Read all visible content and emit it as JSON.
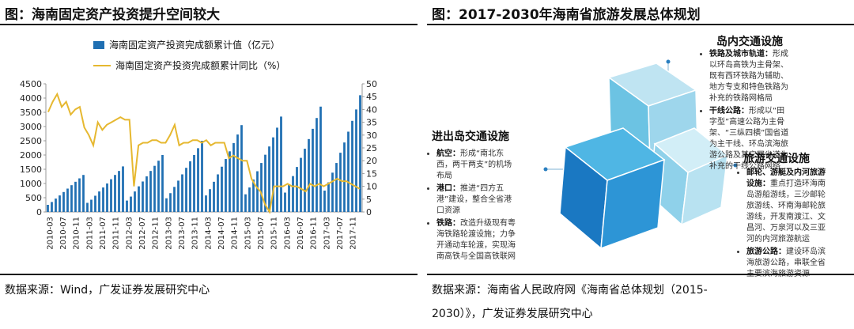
{
  "left": {
    "title": "图：海南固定资产投资提升空间较大",
    "source": "数据来源：Wind，广发证券发展研究中心"
  },
  "right": {
    "title": "图：2017-2030年海南省旅游发展总体规划",
    "source_line1": "数据来源：海南省人民政府网《海南省总体规划（2015-",
    "source_line2": "2030）》，广发证券发展研究中心",
    "groups": [
      {
        "heading": "岛内交通设施",
        "items": [
          {
            "bold": "铁路及城市轨道：",
            "text": "形成以环岛高铁为主骨架、既有西环铁路为辅助、地方专支和特色铁路为补充的铁路网格局"
          },
          {
            "bold": "干线公路：",
            "text": "形成以“田字型”高速公路为主骨架、“三纵四横”国省道为主干线、环岛滨海旅游公路及其它国省道为补充的干线公路网络"
          }
        ]
      },
      {
        "heading": "进出岛交通设施",
        "items": [
          {
            "bold": "航空：",
            "text": "形成“南北东西，两干两支”的机场布局"
          },
          {
            "bold": "港口：",
            "text": "推进“四方五港”建设，整合全省港口资源"
          },
          {
            "bold": "铁路：",
            "text": "改造升级现有粤海铁路轮渡设施；力争开通动车轮渡，实现海南高铁与全国高铁联网"
          }
        ]
      },
      {
        "heading": "旅游交通设施",
        "items": [
          {
            "bold": "邮轮、游艇及内河旅游设施：",
            "text": "重点打造环海南岛游船游线，三沙邮轮旅游线、环南海邮轮旅游线，开发南渡江、文昌河、万泉河以及三亚河的内河旅游航运"
          },
          {
            "bold": "旅游公路：",
            "text": "建设环岛滨海旅游公路，串联全省主要滨海旅游资源"
          }
        ]
      }
    ]
  },
  "chart_data": {
    "type": "bar",
    "legend": [
      "海南固定资产投资完成额累计值（亿元）",
      "海南固定资产投资完成额累计同比（%）"
    ],
    "colors": {
      "bar": "#1f6fb2",
      "line": "#e6b830"
    },
    "x_labels": [
      "2010-03",
      "2010-07",
      "2010-11",
      "2011-03",
      "2011-07",
      "2011-11",
      "2012-03",
      "2012-07",
      "2012-11",
      "2013-03",
      "2013-07",
      "2013-11",
      "2014-03",
      "2014-07",
      "2014-11",
      "2015-03",
      "2015-07",
      "2015-11",
      "2016-03",
      "2016-07",
      "2016-11",
      "2017-03",
      "2017-07",
      "2017-11"
    ],
    "y_left": {
      "min": 0,
      "max": 4500,
      "ticks": [
        0,
        500,
        1000,
        1500,
        2000,
        2500,
        3000,
        3500,
        4000,
        4500
      ]
    },
    "y_right": {
      "min": 0,
      "max": 50,
      "ticks": [
        0,
        5,
        10,
        15,
        20,
        25,
        30,
        35,
        40,
        45,
        50
      ]
    },
    "years": [
      {
        "year": "2010",
        "values": [
          250,
          350,
          470,
          580,
          700,
          820,
          940,
          1060,
          1180,
          1300
        ]
      },
      {
        "year": "2011",
        "values": [
          320,
          430,
          570,
          720,
          860,
          1000,
          1150,
          1300,
          1440,
          1600
        ]
      },
      {
        "year": "2012",
        "values": [
          400,
          540,
          720,
          900,
          1070,
          1250,
          1440,
          1620,
          1800,
          2000
        ]
      },
      {
        "year": "2013",
        "values": [
          480,
          660,
          880,
          1100,
          1320,
          1550,
          1780,
          2000,
          2240,
          2500
        ]
      },
      {
        "year": "2014",
        "values": [
          580,
          800,
          1060,
          1320,
          1590,
          1860,
          2130,
          2420,
          2720,
          3050
        ]
      },
      {
        "year": "2015",
        "values": [
          620,
          860,
          1140,
          1430,
          1720,
          2010,
          2300,
          2620,
          2960,
          3350
        ]
      },
      {
        "year": "2016",
        "values": [
          680,
          950,
          1260,
          1580,
          1900,
          2220,
          2560,
          2920,
          3300,
          3700
        ]
      },
      {
        "year": "2017",
        "values": [
          750,
          1040,
          1380,
          1720,
          2080,
          2440,
          2820,
          3200,
          3600,
          4100
        ]
      }
    ],
    "growth": [
      39,
      43,
      46,
      41,
      43,
      38,
      40,
      41,
      33,
      30,
      26,
      35,
      32,
      34,
      35,
      36,
      37,
      36,
      36,
      10,
      26,
      27,
      27,
      28,
      28,
      27,
      27,
      30,
      34,
      26,
      27,
      27,
      28,
      28,
      27,
      28,
      26,
      27,
      27,
      27,
      21,
      22,
      21,
      20,
      20,
      13,
      10,
      8,
      3,
      0,
      10,
      10,
      10,
      11,
      10,
      10,
      9,
      8,
      11,
      10,
      11,
      10,
      11,
      12,
      13,
      12,
      12,
      11,
      10,
      9
    ]
  }
}
